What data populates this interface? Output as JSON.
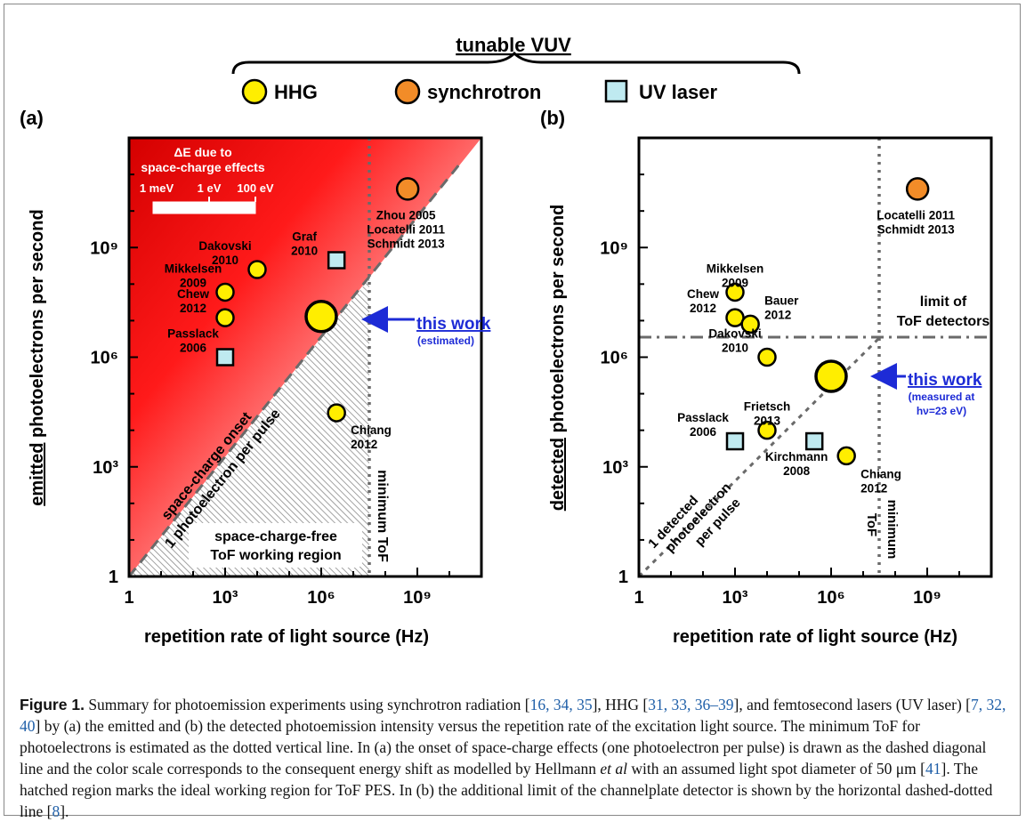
{
  "legend": {
    "group_title": "tunable VUV",
    "items": [
      {
        "label": "HHG",
        "color": "#ffee00",
        "shape": "circle"
      },
      {
        "label": "synchrotron",
        "color": "#f28c28",
        "shape": "circle"
      },
      {
        "label": "UV laser",
        "color": "#bfeaf0",
        "shape": "square"
      }
    ]
  },
  "chart_data": [
    {
      "panel": "(a)",
      "type": "scatter",
      "xlabel": "repetition rate of light source (Hz)",
      "ylabel": "emitted photoelectrons per second",
      "ylabel_emph": "emitted",
      "ylabel_rest": "photoelectrons per second",
      "xscale": "log",
      "yscale": "log",
      "xlim": [
        1,
        100000000000.0
      ],
      "ylim": [
        1,
        1000000000000.0
      ],
      "xticks": [
        "1",
        "10³",
        "10⁶",
        "10⁹"
      ],
      "yticks": [
        "1",
        "10³",
        "10⁶",
        "10⁹"
      ],
      "points": [
        {
          "label": "Zhou 2005\nLocatelli 2011\nSchmidt 2013",
          "x": 500000000.0,
          "y": 40000000000.0,
          "source": "synchrotron"
        },
        {
          "label": "Dakovski\n2010",
          "x": 10000,
          "y": 250000000.0,
          "source": "HHG"
        },
        {
          "label": "Mikkelsen\n2009",
          "x": 1000,
          "y": 60000000.0,
          "source": "HHG"
        },
        {
          "label": "Chew\n2012",
          "x": 1000,
          "y": 12000000.0,
          "source": "HHG"
        },
        {
          "label": "Passlack\n2006",
          "x": 1000,
          "y": 1000000.0,
          "source": "UV laser"
        },
        {
          "label": "Graf\n2010",
          "x": 3000000.0,
          "y": 450000000.0,
          "source": "UV laser"
        },
        {
          "label": "Chiang\n2012",
          "x": 3000000.0,
          "y": 30000.0,
          "source": "HHG"
        },
        {
          "label": "this work",
          "x": 1000000.0,
          "y": 13000000.0,
          "source": "HHG",
          "highlight": true
        }
      ],
      "annotations": {
        "this_work": "this work",
        "this_work_sub": "(estimated)",
        "colorscale_title_1": "ΔE due to",
        "colorscale_title_2": "space-charge effects",
        "colorscale_ticks": [
          "1 meV",
          "1 eV",
          "100 eV"
        ],
        "diagonal_1": "space-charge onset",
        "diagonal_2": "1 photoelectron per pulse",
        "vertical_line": "minimum ToF",
        "region_1": "space-charge-free",
        "region_2": "ToF working region"
      }
    },
    {
      "panel": "(b)",
      "type": "scatter",
      "xlabel": "repetition rate of light source (Hz)",
      "ylabel": "detected photoelectrons per second",
      "ylabel_emph": "detected",
      "ylabel_rest": "photoelectrons per second",
      "xscale": "log",
      "yscale": "log",
      "xlim": [
        1,
        100000000000.0
      ],
      "ylim": [
        1,
        1000000000000.0
      ],
      "xticks": [
        "1",
        "10³",
        "10⁶",
        "10⁹"
      ],
      "yticks": [
        "1",
        "10³",
        "10⁶",
        "10⁹"
      ],
      "points": [
        {
          "label": "Locatelli 2011\nSchmidt 2013",
          "x": 500000000.0,
          "y": 40000000000.0,
          "source": "synchrotron"
        },
        {
          "label": "Mikkelsen\n2009",
          "x": 1000,
          "y": 60000000.0,
          "source": "HHG"
        },
        {
          "label": "Chew\n2012",
          "x": 1000,
          "y": 12000000.0,
          "source": "HHG"
        },
        {
          "label": "Bauer\n2012",
          "x": 3000,
          "y": 8000000.0,
          "source": "HHG"
        },
        {
          "label": "Dakovski\n2010",
          "x": 10000,
          "y": 1000000.0,
          "source": "HHG"
        },
        {
          "label": "Frietsch\n2013",
          "x": 10000,
          "y": 10000.0,
          "source": "HHG"
        },
        {
          "label": "Passlack\n2006",
          "x": 1000,
          "y": 5000,
          "source": "UV laser"
        },
        {
          "label": "Kirchmann\n2008",
          "x": 300000.0,
          "y": 5000,
          "source": "UV laser"
        },
        {
          "label": "Chiang\n2012",
          "x": 3000000.0,
          "y": 2000,
          "source": "HHG"
        },
        {
          "label": "this work",
          "x": 1000000.0,
          "y": 300000.0,
          "source": "HHG",
          "highlight": true
        }
      ],
      "annotations": {
        "this_work": "this work",
        "this_work_sub_1": "(measured at",
        "this_work_sub_2": "hν=23 eV)",
        "limit_1": "limit of",
        "limit_2": "ToF detectors",
        "diagonal_1": "1 detected",
        "diagonal_2": "photoelectron",
        "diagonal_3": "per pulse",
        "vertical_1": "minimum",
        "vertical_2": "ToF"
      },
      "limit_y": 5000000.0
    }
  ],
  "caption": {
    "lead": "Figure 1.",
    "s1": " Summary for photoemission experiments using synchrotron radiation [",
    "r1": "16, 34, 35",
    "s2": "], HHG [",
    "r2": "31, 33, 36–39",
    "s3": "], and femtosecond lasers (UV laser) [",
    "r3": "7, 32, 40",
    "s4": "] by (a) the emitted and (b) the detected photoemission intensity versus the repetition rate of the excitation light source. The minimum ToF for photoelectrons is estimated as the dotted vertical line. In (a) the onset of space-charge effects (one photoelectron per pulse) is drawn as the dashed diagonal line and the color scale corresponds to the consequent energy shift as modelled by Hellmann ",
    "etal": "et al",
    "s5": " with an assumed light spot diameter of 50 μm [",
    "r4": "41",
    "s6": "]. The hatched region marks the ideal working region for ToF PES. In (b) the additional limit of the channelplate detector is shown by the horizontal dashed-dotted line [",
    "r5": "8",
    "s7": "]."
  }
}
